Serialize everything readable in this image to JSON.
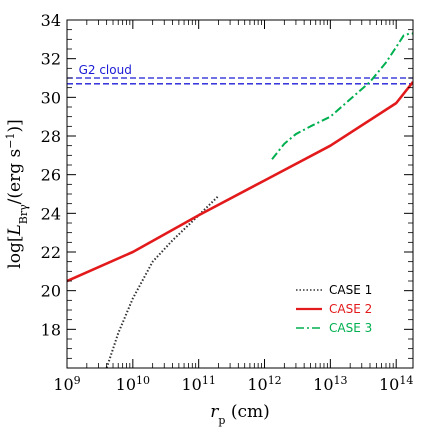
{
  "chart_data": {
    "type": "line",
    "xlabel": "r_p (cm)",
    "ylabel": "log[L_Brγ/(erg s^-1)]",
    "x_scale": "log",
    "xlim": [
      1000000000.0,
      180000000000000.0
    ],
    "ylim": [
      16,
      34
    ],
    "x_ticks": [
      {
        "value": 1000000000.0,
        "base": "10",
        "exp": "9"
      },
      {
        "value": 10000000000.0,
        "base": "10",
        "exp": "10"
      },
      {
        "value": 100000000000.0,
        "base": "10",
        "exp": "11"
      },
      {
        "value": 1000000000000.0,
        "base": "10",
        "exp": "12"
      },
      {
        "value": 10000000000000.0,
        "base": "10",
        "exp": "13"
      },
      {
        "value": 100000000000000.0,
        "base": "10",
        "exp": "14"
      }
    ],
    "y_ticks": [
      18,
      20,
      22,
      24,
      26,
      28,
      30,
      32,
      34
    ],
    "series": [
      {
        "name": "CASE 1",
        "color": "#333333",
        "dash": "dotted",
        "x": [
          4000000000.0,
          6000000000.0,
          10000000000.0,
          20000000000.0,
          40000000000.0,
          100000000000.0,
          200000000000.0
        ],
        "y": [
          16.0,
          17.8,
          19.6,
          21.5,
          22.6,
          23.9,
          24.9
        ]
      },
      {
        "name": "CASE 2",
        "color": "#e31a1c",
        "dash": "solid",
        "x": [
          1000000000.0,
          10000000000.0,
          100000000000.0,
          1000000000000.0,
          10000000000000.0,
          100000000000000.0,
          180000000000000.0
        ],
        "y": [
          20.5,
          22.0,
          23.9,
          25.7,
          27.5,
          29.7,
          30.8
        ]
      },
      {
        "name": "CASE 3",
        "color": "#00b050",
        "dash": "dashdot",
        "x": [
          1300000000000.0,
          2000000000000.0,
          3000000000000.0,
          5000000000000.0,
          10000000000000.0,
          20000000000000.0,
          40000000000000.0,
          70000000000000.0,
          100000000000000.0,
          130000000000000.0,
          160000000000000.0,
          180000000000000.0
        ],
        "y": [
          26.8,
          27.6,
          28.1,
          28.5,
          29.0,
          29.9,
          30.8,
          31.8,
          32.6,
          33.2,
          33.3,
          33.3
        ]
      }
    ],
    "hlines": [
      {
        "y": 30.7,
        "color": "#1c1cd6",
        "dash": "dashed"
      },
      {
        "y": 31.0,
        "color": "#1c1cd6",
        "dash": "dashed"
      }
    ],
    "annotation": {
      "text": "G2 cloud",
      "color": "#1c1cd6",
      "x": 1500000000.0,
      "y": 31.2
    },
    "legend": {
      "position": "bottom-right"
    },
    "grid": false
  }
}
